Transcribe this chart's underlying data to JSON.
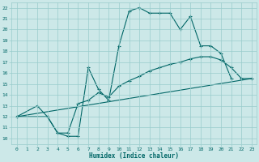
{
  "xlabel": "Humidex (Indice chaleur)",
  "bg_color": "#cce8e8",
  "grid_color": "#99cccc",
  "line_color": "#006666",
  "xlim": [
    -0.5,
    23.5
  ],
  "ylim": [
    9.5,
    22.5
  ],
  "xticks": [
    0,
    1,
    2,
    3,
    4,
    5,
    6,
    7,
    8,
    9,
    10,
    11,
    12,
    13,
    14,
    15,
    16,
    17,
    18,
    19,
    20,
    21,
    22,
    23
  ],
  "yticks": [
    10,
    11,
    12,
    13,
    14,
    15,
    16,
    17,
    18,
    19,
    20,
    21,
    22
  ],
  "line1_x": [
    0,
    2,
    3,
    4,
    5,
    6,
    7,
    8,
    9,
    10,
    11,
    12,
    13,
    14,
    15,
    16,
    17,
    18,
    19,
    20,
    21
  ],
  "line1_y": [
    12.0,
    13.0,
    12.0,
    10.5,
    10.2,
    10.2,
    16.5,
    14.5,
    13.5,
    18.5,
    21.7,
    22.0,
    21.5,
    21.5,
    21.5,
    20.0,
    21.2,
    18.5,
    18.5,
    17.8,
    15.5
  ],
  "line2_x": [
    0,
    3,
    4,
    5,
    6,
    7,
    8,
    9,
    10,
    11,
    12,
    13,
    14,
    15,
    16,
    17,
    18,
    19,
    20,
    21,
    22,
    23
  ],
  "line2_y": [
    12.0,
    12.0,
    10.5,
    10.5,
    13.2,
    13.5,
    14.2,
    13.8,
    14.8,
    15.3,
    15.7,
    16.2,
    16.5,
    16.8,
    17.0,
    17.3,
    17.5,
    17.5,
    17.2,
    16.5,
    15.5,
    15.5
  ],
  "line3_x": [
    0,
    23
  ],
  "line3_y": [
    12.0,
    15.5
  ]
}
